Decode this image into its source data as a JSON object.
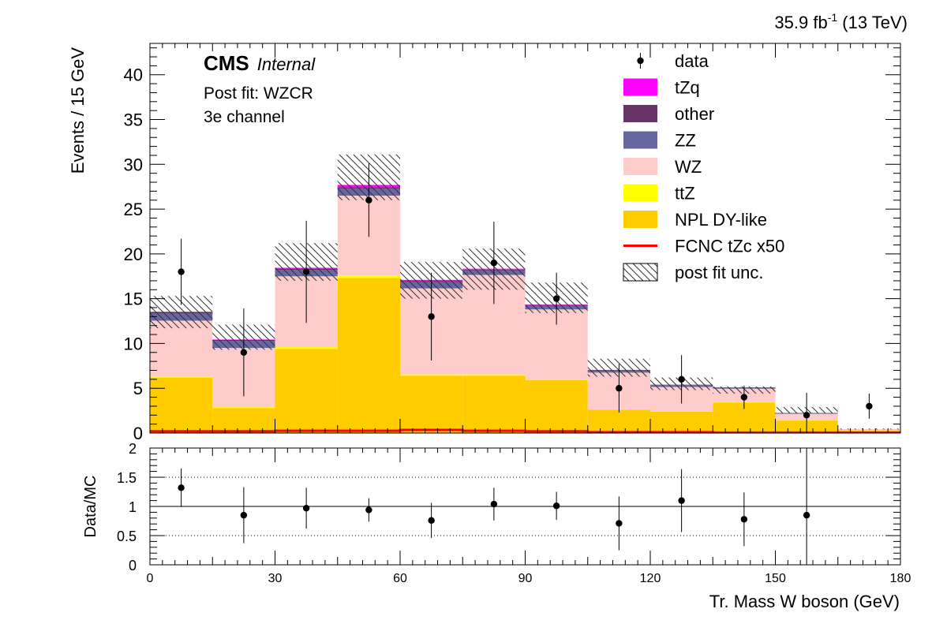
{
  "chart_data": {
    "type": "bar",
    "stacked": true,
    "lumi_label_main": "35.9 fb",
    "lumi_label_exp": "-1",
    "lumi_label_tail": " (13 TeV)",
    "cms_label": "CMS",
    "cms_sublabel": "Internal",
    "text_lines": [
      "Post fit: WZCR",
      "3e channel"
    ],
    "xlabel": "Tr. Mass W boson (GeV)",
    "ylabel": "Events / 15 GeV",
    "ratio_ylabel": "Data/MC",
    "xlim": [
      0,
      180
    ],
    "ylim": [
      0,
      43.5
    ],
    "ratio_ylim": [
      0,
      2
    ],
    "xticks": [
      0,
      30,
      60,
      90,
      120,
      150,
      180
    ],
    "yticks": [
      0,
      5,
      10,
      15,
      20,
      25,
      30,
      35,
      40
    ],
    "ratio_yticks": [
      "0",
      "0.5",
      "1",
      "1.5",
      "2"
    ],
    "bin_edges": [
      0,
      15,
      30,
      45,
      60,
      75,
      90,
      105,
      120,
      135,
      150,
      165,
      180
    ],
    "series": [
      {
        "name": "NPL DY-like",
        "color": "#ffcc00",
        "values": [
          6.2,
          2.8,
          9.4,
          17.3,
          6.4,
          6.4,
          5.9,
          2.6,
          2.4,
          3.4,
          1.4,
          0.3
        ]
      },
      {
        "name": "ttZ",
        "color": "#ffff00",
        "values": [
          0.15,
          0.1,
          0.2,
          0.3,
          0.15,
          0.15,
          0.1,
          0.05,
          0.05,
          0.05,
          0.05,
          0.0
        ]
      },
      {
        "name": "WZ",
        "color": "#ffcccc",
        "values": [
          6.2,
          6.6,
          7.9,
          8.9,
          9.6,
          11.1,
          7.8,
          4.1,
          2.7,
          1.5,
          0.7,
          0.15
        ]
      },
      {
        "name": "ZZ",
        "color": "#6666a0",
        "values": [
          0.8,
          0.8,
          0.7,
          0.8,
          0.7,
          0.5,
          0.4,
          0.2,
          0.2,
          0.1,
          0.1,
          0.0
        ]
      },
      {
        "name": "other",
        "color": "#663366",
        "values": [
          0.15,
          0.1,
          0.15,
          0.15,
          0.1,
          0.1,
          0.1,
          0.05,
          0.05,
          0.05,
          0.0,
          0.0
        ]
      },
      {
        "name": "tZq",
        "color": "#ff00ff",
        "values": [
          0.05,
          0.05,
          0.1,
          0.25,
          0.15,
          0.1,
          0.05,
          0.05,
          0.0,
          0.0,
          0.0,
          0.0
        ]
      }
    ],
    "signal": {
      "name": "FCNC tZc x50",
      "color": "#ff0000",
      "values": [
        0.2,
        0.2,
        0.25,
        0.25,
        0.35,
        0.25,
        0.2,
        0.1,
        0.1,
        0.05,
        0.05,
        0.05
      ]
    },
    "uncertainty": {
      "name": "post fit unc.",
      "up": [
        15.3,
        12.1,
        21.2,
        31.1,
        19.1,
        20.6,
        16.8,
        8.3,
        6.2,
        5.2,
        2.9,
        0.5
      ],
      "down": [
        11.7,
        9.3,
        17.0,
        26.0,
        15.0,
        16.0,
        13.4,
        6.3,
        4.8,
        4.4,
        2.2,
        0.4
      ]
    },
    "data": {
      "name": "data",
      "x": [
        7.5,
        22.5,
        37.5,
        52.5,
        67.5,
        82.5,
        97.5,
        112.5,
        127.5,
        142.5,
        157.5,
        172.5
      ],
      "y": [
        18,
        9,
        18,
        26,
        13,
        19,
        15,
        5,
        6,
        4,
        2,
        3
      ],
      "err_up": [
        3.7,
        4.9,
        5.7,
        4.1,
        4.9,
        4.6,
        2.9,
        2.7,
        2.7,
        1.3,
        2.5,
        1.4
      ],
      "err_down": [
        3.7,
        4.9,
        5.7,
        4.1,
        4.9,
        4.6,
        2.9,
        2.7,
        2.7,
        1.3,
        2.0,
        1.4
      ]
    },
    "ratio": {
      "x": [
        7.5,
        22.5,
        37.5,
        52.5,
        67.5,
        82.5,
        97.5,
        112.5,
        127.5,
        142.5,
        157.5
      ],
      "y": [
        1.32,
        0.85,
        0.97,
        0.94,
        0.76,
        1.04,
        1.01,
        0.71,
        1.1,
        0.78,
        0.85
      ],
      "err_up": [
        0.33,
        0.48,
        0.35,
        0.2,
        0.3,
        0.28,
        0.24,
        0.46,
        0.54,
        0.46,
        1.15
      ],
      "err_down": [
        0.33,
        0.48,
        0.35,
        0.2,
        0.3,
        0.28,
        0.24,
        0.46,
        0.54,
        0.46,
        0.85
      ]
    },
    "legend_placement": "top-right",
    "legend_order": [
      "data",
      "tZq",
      "other",
      "ZZ",
      "WZ",
      "ttZ",
      "NPL DY-like",
      "FCNC tZc x50",
      "post fit unc."
    ]
  }
}
